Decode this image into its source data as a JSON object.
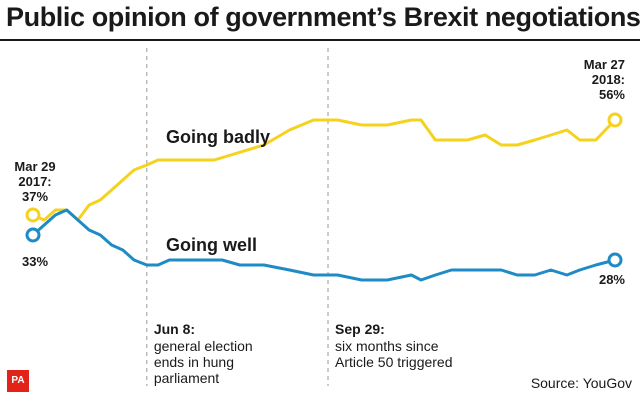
{
  "title": "Public opinion of government’s Brexit negotiations",
  "source": "Source: YouGov",
  "logo": "PA",
  "colors": {
    "going_badly": "#f5d21e",
    "going_well": "#1f8bc6",
    "annotation_line": "#999999"
  },
  "chart_data": {
    "type": "line",
    "title": "Public opinion of government’s Brexit negotiations",
    "xlabel": "",
    "ylabel": "",
    "x_range": [
      "2017-03-29",
      "2018-03-27"
    ],
    "ylim": [
      20,
      65
    ],
    "grid": false,
    "legend": "inline labels",
    "series": [
      {
        "name": "Going badly",
        "x": [
          "2017-03-29",
          "2017-04-05",
          "2017-04-12",
          "2017-04-19",
          "2017-04-26",
          "2017-05-03",
          "2017-05-10",
          "2017-05-17",
          "2017-05-24",
          "2017-05-31",
          "2017-06-08",
          "2017-06-15",
          "2017-06-22",
          "2017-07-01",
          "2017-07-20",
          "2017-08-20",
          "2017-09-05",
          "2017-09-20",
          "2017-10-05",
          "2017-10-20",
          "2017-11-05",
          "2017-11-20",
          "2017-11-26",
          "2017-12-05",
          "2017-12-15",
          "2017-12-25",
          "2018-01-05",
          "2018-01-15",
          "2018-01-25",
          "2018-02-05",
          "2018-02-15",
          "2018-02-25",
          "2018-03-05",
          "2018-03-15",
          "2018-03-27"
        ],
        "values": [
          37,
          36,
          38,
          38,
          36,
          39,
          40,
          42,
          44,
          46,
          47,
          48,
          48,
          48,
          48,
          51,
          54,
          56,
          56,
          55,
          55,
          56,
          56,
          52,
          52,
          52,
          53,
          51,
          51,
          52,
          53,
          54,
          52,
          52,
          56
        ]
      },
      {
        "name": "Going well",
        "x": [
          "2017-03-29",
          "2017-04-05",
          "2017-04-12",
          "2017-04-19",
          "2017-04-26",
          "2017-05-03",
          "2017-05-10",
          "2017-05-17",
          "2017-05-24",
          "2017-05-31",
          "2017-06-08",
          "2017-06-15",
          "2017-06-22",
          "2017-07-01",
          "2017-07-20",
          "2017-07-25",
          "2017-08-05",
          "2017-08-20",
          "2017-09-05",
          "2017-09-20",
          "2017-10-05",
          "2017-10-20",
          "2017-11-05",
          "2017-11-20",
          "2017-11-26",
          "2017-12-05",
          "2017-12-15",
          "2017-12-25",
          "2018-01-05",
          "2018-01-15",
          "2018-01-25",
          "2018-02-05",
          "2018-02-15",
          "2018-02-25",
          "2018-03-05",
          "2018-03-15",
          "2018-03-27"
        ],
        "values": [
          33,
          35,
          37,
          38,
          36,
          34,
          33,
          31,
          30,
          28,
          27,
          27,
          28,
          28,
          28,
          28,
          27,
          27,
          26,
          25,
          25,
          24,
          24,
          25,
          24,
          25,
          26,
          26,
          26,
          26,
          25,
          25,
          26,
          25,
          26,
          27,
          28
        ]
      }
    ],
    "point_labels": [
      {
        "series": "Going badly",
        "x": "2017-03-29",
        "text": "Mar 29\n2017:\n37%"
      },
      {
        "series": "Going well",
        "x": "2017-03-29",
        "text": "33%"
      },
      {
        "series": "Going badly",
        "x": "2018-03-27",
        "text": "Mar 27\n2018:\n56%"
      },
      {
        "series": "Going well",
        "x": "2018-03-27",
        "text": "28%"
      }
    ],
    "series_labels": [
      {
        "series": "Going badly",
        "text": "Going badly"
      },
      {
        "series": "Going well",
        "text": "Going well"
      }
    ],
    "annotations": [
      {
        "x": "2017-06-08",
        "date_text": "Jun 8:",
        "lines": [
          "general election",
          "ends in hung",
          "parliament"
        ]
      },
      {
        "x": "2017-09-29",
        "date_text": "Sep 29:",
        "lines": [
          "six months since",
          "Article 50 triggered"
        ]
      }
    ]
  }
}
